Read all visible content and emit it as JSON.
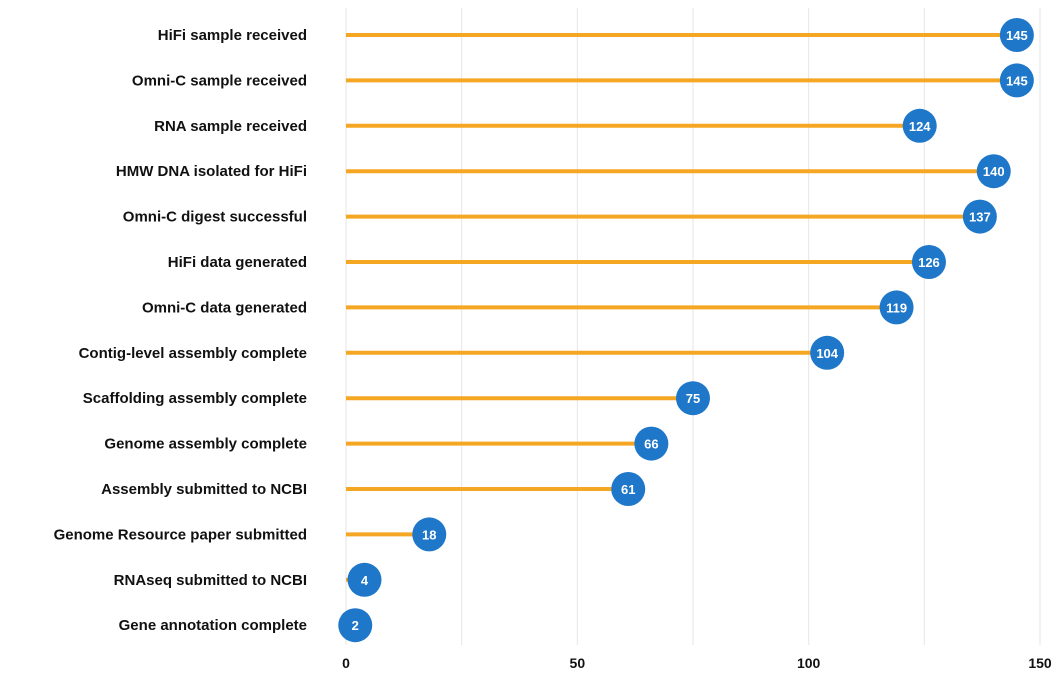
{
  "chart_data": {
    "type": "bar",
    "style": "lollipop",
    "orientation": "horizontal",
    "categories": [
      "HiFi sample received",
      "Omni-C sample received",
      "RNA sample received",
      "HMW DNA isolated for HiFi",
      "Omni-C digest successful",
      "HiFi data generated",
      "Omni-C data generated",
      "Contig-level assembly complete",
      "Scaffolding assembly complete",
      "Genome assembly complete",
      "Assembly submitted to NCBI",
      "Genome Resource paper submitted",
      "RNAseq submitted to NCBI",
      "Gene annotation complete"
    ],
    "values": [
      145,
      145,
      124,
      140,
      137,
      126,
      119,
      104,
      75,
      66,
      61,
      18,
      4,
      2
    ],
    "title": "",
    "xlabel": "",
    "ylabel": "",
    "xlim": [
      0,
      150
    ],
    "x_ticks": [
      0,
      50,
      100,
      150
    ],
    "grid": "vertical",
    "legend": "none",
    "colors": {
      "stem": "#F5A623",
      "marker": "#1F77C9",
      "marker_text": "#FFFFFF",
      "grid": "#E6E6E6",
      "label": "#111111"
    }
  }
}
